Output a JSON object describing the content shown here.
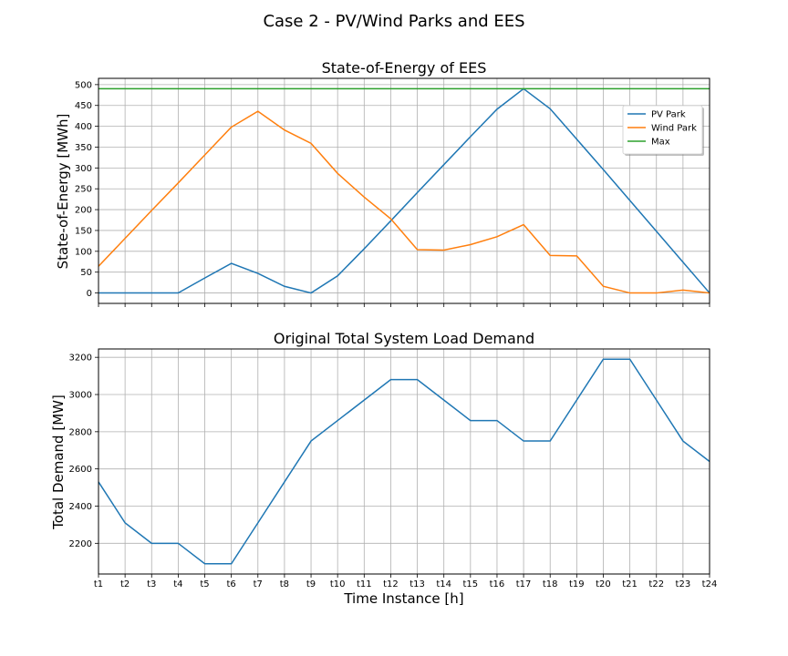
{
  "figure": {
    "title": "Case 2 - PV/Wind Parks and EES"
  },
  "chart_data": [
    {
      "type": "line",
      "title": "State-of-Energy of EES",
      "xlabel": "",
      "ylabel": "State-of-Energy [MWh]",
      "x": [
        "t1",
        "t2",
        "t3",
        "t4",
        "t5",
        "t6",
        "t7",
        "t8",
        "t9",
        "t10",
        "t11",
        "t12",
        "t13",
        "t14",
        "t15",
        "t16",
        "t17",
        "t18",
        "t19",
        "t20",
        "t21",
        "t22",
        "t23",
        "t24"
      ],
      "ylim": [
        -25,
        515
      ],
      "yticks": [
        0,
        50,
        100,
        150,
        200,
        250,
        300,
        350,
        400,
        450,
        500
      ],
      "grid": true,
      "legend_position": "upper-right",
      "series": [
        {
          "name": "PV Park",
          "color": "#1f77b4",
          "values": [
            0,
            0,
            0,
            0,
            36,
            71,
            47,
            16,
            0,
            41,
            106,
            173,
            241,
            308,
            375,
            441,
            490,
            442,
            369,
            296,
            222,
            148,
            74,
            0
          ]
        },
        {
          "name": "Wind Park",
          "color": "#ff7f0e",
          "values": [
            64,
            131,
            198,
            264,
            331,
            398,
            436,
            391,
            359,
            287,
            230,
            178,
            104,
            103,
            116,
            135,
            164,
            90,
            89,
            16,
            0,
            0,
            7,
            0
          ]
        },
        {
          "name": "Max",
          "color": "#2ca02c",
          "constant": 490
        }
      ]
    },
    {
      "type": "line",
      "title": "Original Total System Load Demand",
      "xlabel": "Time Instance [h]",
      "ylabel": "Total Demand [MW]",
      "x": [
        "t1",
        "t2",
        "t3",
        "t4",
        "t5",
        "t6",
        "t7",
        "t8",
        "t9",
        "t10",
        "t11",
        "t12",
        "t13",
        "t14",
        "t15",
        "t16",
        "t17",
        "t18",
        "t19",
        "t20",
        "t21",
        "t22",
        "t23",
        "t24"
      ],
      "ylim": [
        2035,
        3245
      ],
      "yticks": [
        2200,
        2400,
        2600,
        2800,
        3000,
        3200
      ],
      "grid": true,
      "series": [
        {
          "color": "#1f77b4",
          "values": [
            2530,
            2310,
            2200,
            2200,
            2090,
            2090,
            2310,
            2530,
            2750,
            2860,
            2970,
            3080,
            3080,
            2970,
            2860,
            2860,
            2750,
            2750,
            2970,
            3190,
            3190,
            2970,
            2750,
            2640
          ]
        }
      ]
    }
  ]
}
